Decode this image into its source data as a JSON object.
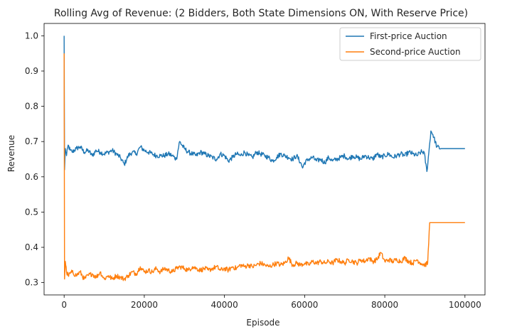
{
  "chart_data": {
    "type": "line",
    "title": "Rolling Avg of Revenue: (2 Bidders, Both State Dimensions ON, With Reserve Price)",
    "xlabel": "Episode",
    "ylabel": "Revenue",
    "xlim": [
      -5000,
      105000
    ],
    "ylim": [
      0.265,
      1.035
    ],
    "xticks": [
      0,
      20000,
      40000,
      60000,
      80000,
      100000
    ],
    "xtick_labels": [
      "0",
      "20000",
      "40000",
      "60000",
      "80000",
      "100000"
    ],
    "yticks": [
      0.3,
      0.4,
      0.5,
      0.6,
      0.7,
      0.8,
      0.9,
      1.0
    ],
    "ytick_labels": [
      "0.3",
      "0.4",
      "0.5",
      "0.6",
      "0.7",
      "0.8",
      "0.9",
      "1.0"
    ],
    "grid": false,
    "legend_position": "top-right",
    "series": [
      {
        "name": "First-price Auction",
        "color": "#1f77b4",
        "noise": 0.007,
        "points": [
          [
            0,
            1.0
          ],
          [
            100,
            0.62
          ],
          [
            300,
            0.68
          ],
          [
            600,
            0.66
          ],
          [
            1000,
            0.69
          ],
          [
            1500,
            0.675
          ],
          [
            2000,
            0.67
          ],
          [
            3000,
            0.68
          ],
          [
            4000,
            0.685
          ],
          [
            5000,
            0.67
          ],
          [
            6000,
            0.675
          ],
          [
            7000,
            0.66
          ],
          [
            8000,
            0.675
          ],
          [
            9000,
            0.67
          ],
          [
            10000,
            0.665
          ],
          [
            11000,
            0.67
          ],
          [
            12000,
            0.675
          ],
          [
            13000,
            0.665
          ],
          [
            14000,
            0.655
          ],
          [
            15000,
            0.635
          ],
          [
            16000,
            0.66
          ],
          [
            17000,
            0.67
          ],
          [
            18000,
            0.665
          ],
          [
            19000,
            0.685
          ],
          [
            20000,
            0.675
          ],
          [
            21000,
            0.67
          ],
          [
            22000,
            0.665
          ],
          [
            23000,
            0.66
          ],
          [
            24000,
            0.66
          ],
          [
            25000,
            0.66
          ],
          [
            26000,
            0.665
          ],
          [
            27000,
            0.66
          ],
          [
            28000,
            0.65
          ],
          [
            28800,
            0.7
          ],
          [
            30000,
            0.68
          ],
          [
            31000,
            0.67
          ],
          [
            32000,
            0.665
          ],
          [
            33000,
            0.66
          ],
          [
            34000,
            0.67
          ],
          [
            35000,
            0.665
          ],
          [
            36000,
            0.66
          ],
          [
            37000,
            0.655
          ],
          [
            38000,
            0.65
          ],
          [
            39000,
            0.665
          ],
          [
            40000,
            0.66
          ],
          [
            41000,
            0.645
          ],
          [
            42000,
            0.655
          ],
          [
            43000,
            0.665
          ],
          [
            44000,
            0.66
          ],
          [
            45000,
            0.67
          ],
          [
            46000,
            0.66
          ],
          [
            47000,
            0.655
          ],
          [
            48000,
            0.67
          ],
          [
            49000,
            0.665
          ],
          [
            50000,
            0.66
          ],
          [
            51000,
            0.655
          ],
          [
            52000,
            0.645
          ],
          [
            53000,
            0.655
          ],
          [
            54000,
            0.665
          ],
          [
            55000,
            0.66
          ],
          [
            56000,
            0.655
          ],
          [
            57000,
            0.65
          ],
          [
            58000,
            0.66
          ],
          [
            59000,
            0.64
          ],
          [
            59500,
            0.625
          ],
          [
            60000,
            0.64
          ],
          [
            61000,
            0.65
          ],
          [
            62000,
            0.655
          ],
          [
            63000,
            0.645
          ],
          [
            64000,
            0.65
          ],
          [
            65000,
            0.64
          ],
          [
            66000,
            0.655
          ],
          [
            67000,
            0.645
          ],
          [
            68000,
            0.65
          ],
          [
            69000,
            0.655
          ],
          [
            70000,
            0.66
          ],
          [
            71000,
            0.65
          ],
          [
            72000,
            0.66
          ],
          [
            73000,
            0.655
          ],
          [
            74000,
            0.65
          ],
          [
            75000,
            0.66
          ],
          [
            76000,
            0.655
          ],
          [
            77000,
            0.65
          ],
          [
            78000,
            0.665
          ],
          [
            79000,
            0.655
          ],
          [
            80000,
            0.66
          ],
          [
            81000,
            0.665
          ],
          [
            82000,
            0.655
          ],
          [
            83000,
            0.66
          ],
          [
            84000,
            0.665
          ],
          [
            85000,
            0.66
          ],
          [
            86000,
            0.67
          ],
          [
            87000,
            0.665
          ],
          [
            88000,
            0.66
          ],
          [
            89000,
            0.67
          ],
          [
            89800,
            0.67
          ],
          [
            90500,
            0.615
          ],
          [
            91000,
            0.67
          ],
          [
            91500,
            0.73
          ],
          [
            92000,
            0.72
          ],
          [
            93000,
            0.685
          ],
          [
            94000,
            0.68
          ],
          [
            100000,
            0.68
          ]
        ]
      },
      {
        "name": "Second-price Auction",
        "color": "#ff7f0e",
        "noise": 0.007,
        "points": [
          [
            0,
            0.95
          ],
          [
            100,
            0.31
          ],
          [
            300,
            0.36
          ],
          [
            600,
            0.33
          ],
          [
            1000,
            0.32
          ],
          [
            2000,
            0.33
          ],
          [
            3000,
            0.32
          ],
          [
            4000,
            0.33
          ],
          [
            5000,
            0.31
          ],
          [
            6000,
            0.32
          ],
          [
            7000,
            0.325
          ],
          [
            8000,
            0.315
          ],
          [
            9000,
            0.33
          ],
          [
            10000,
            0.31
          ],
          [
            11000,
            0.32
          ],
          [
            12000,
            0.31
          ],
          [
            13000,
            0.32
          ],
          [
            14000,
            0.315
          ],
          [
            15000,
            0.31
          ],
          [
            16000,
            0.32
          ],
          [
            17000,
            0.33
          ],
          [
            18000,
            0.325
          ],
          [
            19000,
            0.345
          ],
          [
            20000,
            0.33
          ],
          [
            21000,
            0.335
          ],
          [
            22000,
            0.33
          ],
          [
            23000,
            0.34
          ],
          [
            24000,
            0.33
          ],
          [
            25000,
            0.34
          ],
          [
            26000,
            0.335
          ],
          [
            27000,
            0.33
          ],
          [
            28000,
            0.34
          ],
          [
            29000,
            0.345
          ],
          [
            30000,
            0.34
          ],
          [
            31000,
            0.335
          ],
          [
            32000,
            0.345
          ],
          [
            33000,
            0.34
          ],
          [
            34000,
            0.335
          ],
          [
            35000,
            0.34
          ],
          [
            36000,
            0.335
          ],
          [
            37000,
            0.34
          ],
          [
            38000,
            0.345
          ],
          [
            39000,
            0.335
          ],
          [
            40000,
            0.34
          ],
          [
            41000,
            0.335
          ],
          [
            42000,
            0.345
          ],
          [
            43000,
            0.34
          ],
          [
            44000,
            0.35
          ],
          [
            45000,
            0.345
          ],
          [
            46000,
            0.35
          ],
          [
            47000,
            0.345
          ],
          [
            48000,
            0.35
          ],
          [
            49000,
            0.355
          ],
          [
            50000,
            0.35
          ],
          [
            51000,
            0.345
          ],
          [
            52000,
            0.35
          ],
          [
            53000,
            0.355
          ],
          [
            54000,
            0.35
          ],
          [
            55000,
            0.355
          ],
          [
            56000,
            0.37
          ],
          [
            57000,
            0.35
          ],
          [
            58000,
            0.355
          ],
          [
            59000,
            0.35
          ],
          [
            60000,
            0.355
          ],
          [
            61000,
            0.35
          ],
          [
            62000,
            0.36
          ],
          [
            63000,
            0.355
          ],
          [
            64000,
            0.36
          ],
          [
            65000,
            0.355
          ],
          [
            66000,
            0.36
          ],
          [
            67000,
            0.355
          ],
          [
            68000,
            0.365
          ],
          [
            69000,
            0.36
          ],
          [
            70000,
            0.355
          ],
          [
            71000,
            0.365
          ],
          [
            72000,
            0.36
          ],
          [
            73000,
            0.355
          ],
          [
            74000,
            0.365
          ],
          [
            75000,
            0.36
          ],
          [
            76000,
            0.37
          ],
          [
            77000,
            0.36
          ],
          [
            78000,
            0.365
          ],
          [
            79000,
            0.385
          ],
          [
            80000,
            0.36
          ],
          [
            81000,
            0.365
          ],
          [
            82000,
            0.36
          ],
          [
            83000,
            0.365
          ],
          [
            84000,
            0.36
          ],
          [
            85000,
            0.37
          ],
          [
            86000,
            0.36
          ],
          [
            87000,
            0.355
          ],
          [
            88000,
            0.365
          ],
          [
            89000,
            0.355
          ],
          [
            90000,
            0.35
          ],
          [
            90700,
            0.355
          ],
          [
            91200,
            0.47
          ],
          [
            100000,
            0.47
          ]
        ]
      }
    ]
  }
}
